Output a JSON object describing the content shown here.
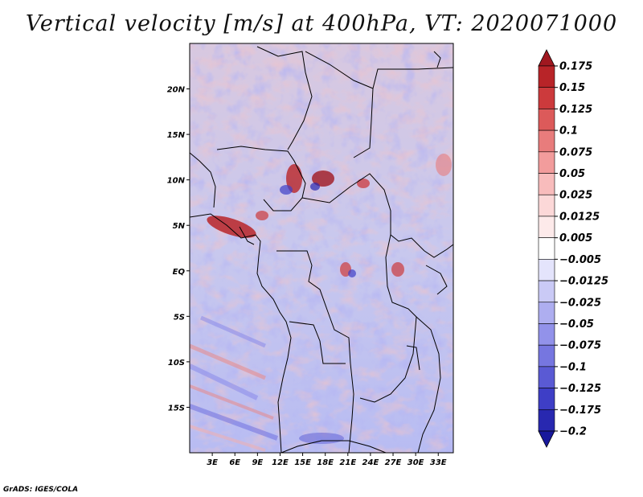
{
  "title": "Vertical velocity [m/s] at 400hPa, VT: 2020071000",
  "footer": "GrADS: IGES/COLA",
  "map": {
    "lon_range": [
      0,
      35
    ],
    "lat_range": [
      -20,
      25
    ],
    "lat_ticks": [
      {
        "value": 20,
        "label": "20N"
      },
      {
        "value": 15,
        "label": "15N"
      },
      {
        "value": 10,
        "label": "10N"
      },
      {
        "value": 5,
        "label": "5N"
      },
      {
        "value": 0,
        "label": "EQ"
      },
      {
        "value": -5,
        "label": "5S"
      },
      {
        "value": -10,
        "label": "10S"
      },
      {
        "value": -15,
        "label": "15S"
      }
    ],
    "lon_ticks": [
      {
        "value": 3,
        "label": "3E"
      },
      {
        "value": 6,
        "label": "6E"
      },
      {
        "value": 9,
        "label": "9E"
      },
      {
        "value": 12,
        "label": "12E"
      },
      {
        "value": 15,
        "label": "15E"
      },
      {
        "value": 18,
        "label": "18E"
      },
      {
        "value": 21,
        "label": "21E"
      },
      {
        "value": 24,
        "label": "24E"
      },
      {
        "value": 27,
        "label": "27E"
      },
      {
        "value": 30,
        "label": "30E"
      },
      {
        "value": 33,
        "label": "33E"
      }
    ]
  },
  "colorbar": {
    "labels": [
      "0.175",
      "0.15",
      "0.125",
      "0.1",
      "0.075",
      "0.05",
      "0.025",
      "0.0125",
      "0.005",
      "−0.005",
      "−0.0125",
      "−0.025",
      "−0.05",
      "−0.075",
      "−0.1",
      "−0.125",
      "−0.175",
      "−0.2"
    ],
    "colors": [
      "#a01820",
      "#b82428",
      "#cc3a3c",
      "#dc5a5a",
      "#e87c7c",
      "#f29c9c",
      "#f8bcbc",
      "#fcd8d8",
      "#fdeaea",
      "#ffffff",
      "#e4e4fc",
      "#cacaf6",
      "#aeaef0",
      "#9292ea",
      "#7676e0",
      "#5a5ad4",
      "#3e3ec6",
      "#2828b0",
      "#18189c"
    ]
  }
}
